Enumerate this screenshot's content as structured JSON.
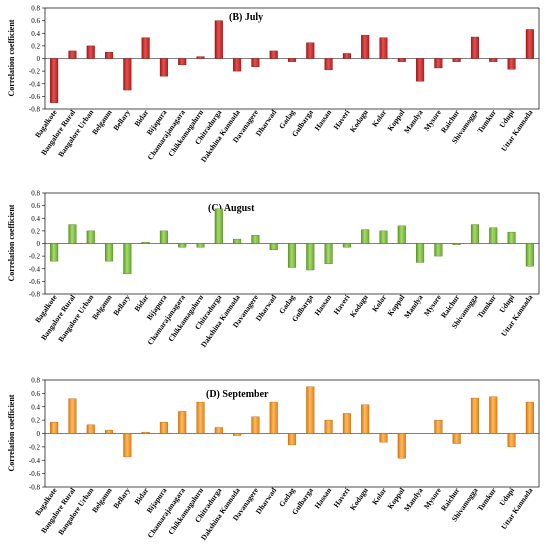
{
  "colors": {
    "july": "#d42b2b",
    "august": "#7cc23b",
    "september": "#f39421"
  },
  "chart_data": [
    {
      "type": "bar",
      "title": "(B) July",
      "ylabel": "Correlation coefficient",
      "ylim": [
        -0.8,
        0.8
      ],
      "yticks": [
        "0.8",
        "0.6",
        "0.4",
        "0.2",
        "0",
        "-0.2",
        "-0.4",
        "-0.6",
        "-0.8"
      ],
      "grid": false,
      "categories": [
        "Bagalkote",
        "Bangalore Rural",
        "Bangalore Urban",
        "Belgaum",
        "Bellary",
        "Bidar",
        "Bijapura",
        "Chamarajanagara",
        "Chikkamagaluru",
        "Chitradurga",
        "Dakshina Kannada",
        "Davanagere",
        "Dharwad",
        "Gadag",
        "Gulbarga",
        "Hassan",
        "Haveri",
        "Kodagu",
        "Kolar",
        "Koppal",
        "Mandya",
        "Mysore",
        "Raichur",
        "Shivamogga",
        "Tumkur",
        "Udupi",
        "Uttar Kannada"
      ],
      "values": [
        -0.7,
        0.12,
        0.2,
        0.1,
        -0.5,
        0.33,
        -0.28,
        -0.1,
        0.03,
        0.6,
        -0.2,
        -0.13,
        0.12,
        -0.05,
        0.25,
        -0.18,
        0.08,
        0.37,
        0.33,
        -0.05,
        -0.36,
        -0.15,
        -0.05,
        0.34,
        -0.05,
        -0.17,
        0.46
      ]
    },
    {
      "type": "bar",
      "title": "(C) August",
      "ylabel": "Correlation coefficient",
      "ylim": [
        -0.8,
        0.8
      ],
      "yticks": [
        "0.8",
        "0.6",
        "0.4",
        "0.2",
        "0",
        "-0.2",
        "-0.4",
        "-0.6",
        "-0.8"
      ],
      "grid": false,
      "categories": [
        "Bagalkote",
        "Bangalore Rural",
        "Bangalore Urban",
        "Belgaum",
        "Bellary",
        "Bidar",
        "Bijapura",
        "Chamarajanagara",
        "Chikkamagaluru",
        "Chitradurga",
        "Dakshina Kannada",
        "Davanagere",
        "Dharwad",
        "Gadag",
        "Gulbarga",
        "Hassan",
        "Haveri",
        "Kodagu",
        "Kolar",
        "Koppal",
        "Mandya",
        "Mysore",
        "Raichur",
        "Shivamogga",
        "Tumkur",
        "Udupi",
        "Uttar Kannada"
      ],
      "values": [
        -0.28,
        0.3,
        0.2,
        -0.28,
        -0.48,
        0.02,
        0.2,
        -0.06,
        -0.06,
        0.55,
        0.07,
        0.13,
        -0.1,
        -0.38,
        -0.42,
        -0.32,
        -0.06,
        0.22,
        0.2,
        0.28,
        -0.3,
        -0.2,
        -0.02,
        0.3,
        0.25,
        0.18,
        -0.36
      ]
    },
    {
      "type": "bar",
      "title": "(D) September",
      "ylabel": "Correlation coefficient",
      "ylim": [
        -0.8,
        0.8
      ],
      "yticks": [
        "0.8",
        "0.6",
        "0.4",
        "0.2",
        "0",
        "-0.2",
        "-0.4",
        "-0.6",
        "-0.8"
      ],
      "grid": false,
      "categories": [
        "Bagalkote",
        "Bangalore Rural",
        "Bangalore Urban",
        "Belgaum",
        "Bellary",
        "Bidar",
        "Bijapura",
        "Chamarajanagara",
        "Chikkamagaluru",
        "Chitradurga",
        "Dakshina Kannada",
        "Davanagere",
        "Dharwad",
        "Gadag",
        "Gulbarga",
        "Hassan",
        "Haveri",
        "Kodagu",
        "Kolar",
        "Koppal",
        "Mandya",
        "Mysore",
        "Raichur",
        "Shivamogga",
        "Tumkur",
        "Udupi",
        "Uttar Kannada"
      ],
      "values": [
        0.17,
        0.52,
        0.13,
        0.05,
        -0.35,
        0.02,
        0.17,
        0.33,
        0.47,
        0.09,
        -0.03,
        0.25,
        0.47,
        -0.17,
        0.7,
        0.2,
        0.3,
        0.43,
        -0.13,
        -0.37,
        0.0,
        0.2,
        -0.15,
        0.53,
        0.55,
        -0.2,
        0.47
      ]
    }
  ]
}
